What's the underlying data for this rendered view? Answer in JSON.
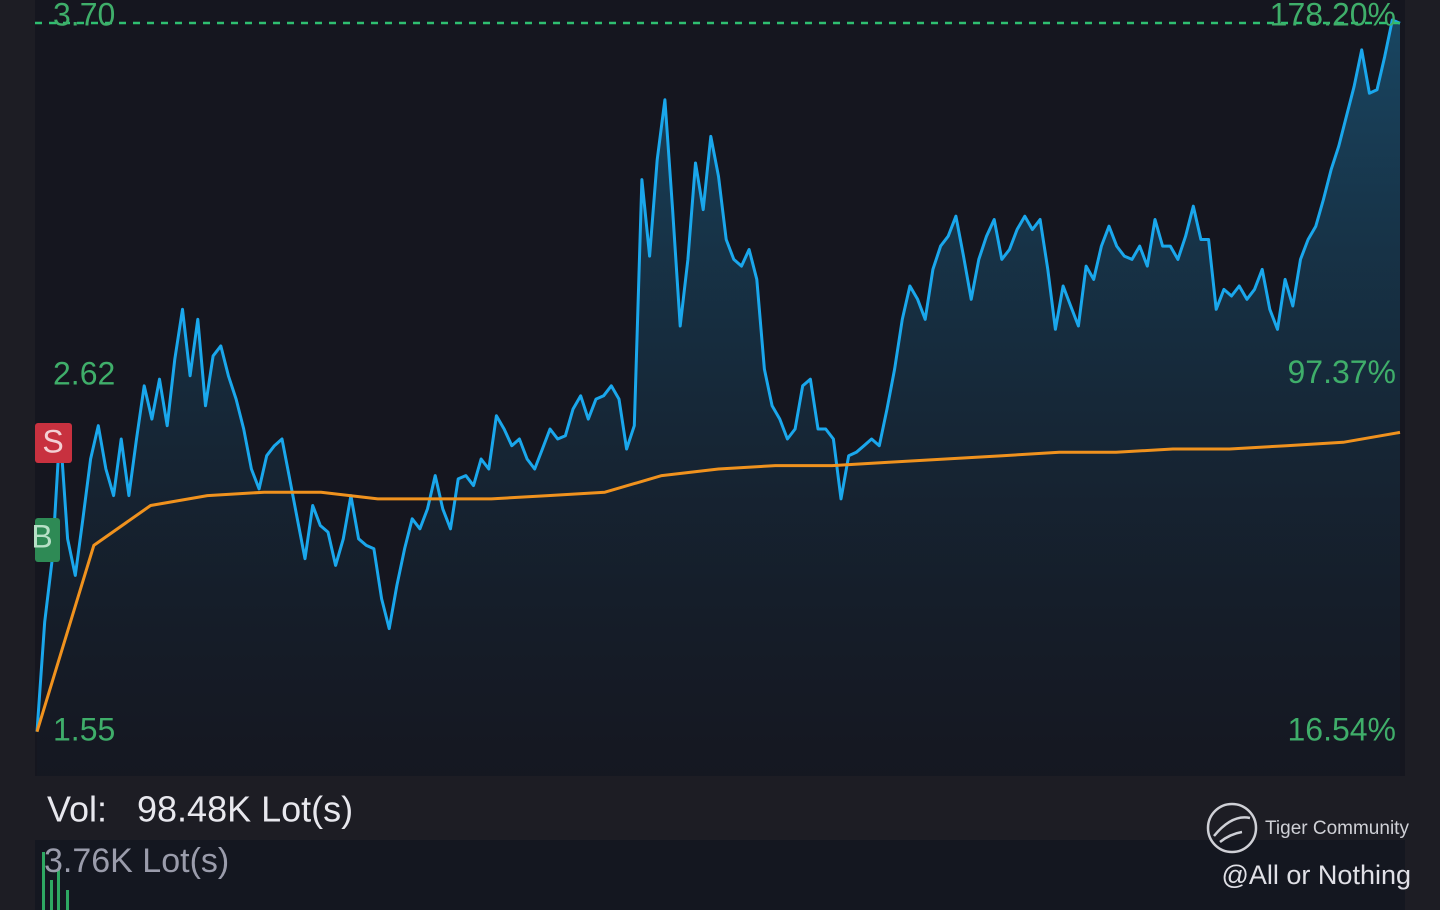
{
  "chart_data": {
    "type": "line",
    "ylim": [
      1.55,
      3.7
    ],
    "yticks": [
      1.55,
      2.62,
      {
        "value": 3.7,
        "label": "3.70"
      }
    ],
    "y2lim": [
      16.54,
      178.2
    ],
    "y2ticks": [
      {
        "value": 16.54,
        "label": "16.54%"
      },
      {
        "value": 97.37,
        "label": "97.37%"
      },
      {
        "value": 178.2,
        "label": "178.20%"
      }
    ],
    "series": [
      {
        "color": "#1aa7ec",
        "values": [
          1.56,
          1.89,
          2.08,
          2.47,
          2.14,
          2.03,
          2.2,
          2.38,
          2.48,
          2.35,
          2.27,
          2.44,
          2.27,
          2.44,
          2.6,
          2.5,
          2.62,
          2.48,
          2.68,
          2.83,
          2.63,
          2.8,
          2.54,
          2.69,
          2.72,
          2.63,
          2.56,
          2.47,
          2.35,
          2.29,
          2.39,
          2.42,
          2.44,
          2.32,
          2.2,
          2.08,
          2.24,
          2.18,
          2.16,
          2.06,
          2.14,
          2.27,
          2.14,
          2.12,
          2.11,
          1.96,
          1.87,
          2.0,
          2.11,
          2.2,
          2.17,
          2.23,
          2.33,
          2.23,
          2.17,
          2.32,
          2.33,
          2.3,
          2.38,
          2.35,
          2.51,
          2.47,
          2.42,
          2.44,
          2.38,
          2.35,
          2.41,
          2.47,
          2.44,
          2.45,
          2.53,
          2.57,
          2.5,
          2.56,
          2.57,
          2.6,
          2.56,
          2.41,
          2.48,
          3.22,
          2.99,
          3.28,
          3.46,
          3.13,
          2.78,
          2.98,
          3.27,
          3.13,
          3.35,
          3.23,
          3.04,
          2.98,
          2.96,
          3.01,
          2.92,
          2.65,
          2.54,
          2.5,
          2.44,
          2.47,
          2.6,
          2.62,
          2.47,
          2.47,
          2.44,
          2.26,
          2.39,
          2.4,
          2.42,
          2.44,
          2.42,
          2.53,
          2.65,
          2.8,
          2.9,
          2.86,
          2.8,
          2.95,
          3.02,
          3.05,
          3.11,
          2.99,
          2.86,
          2.98,
          3.05,
          3.1,
          2.98,
          3.01,
          3.07,
          3.11,
          3.07,
          3.1,
          2.95,
          2.77,
          2.9,
          2.84,
          2.78,
          2.96,
          2.92,
          3.02,
          3.08,
          3.02,
          2.99,
          2.98,
          3.02,
          2.96,
          3.1,
          3.02,
          3.02,
          2.98,
          3.05,
          3.14,
          3.04,
          3.04,
          2.83,
          2.89,
          2.87,
          2.9,
          2.86,
          2.89,
          2.95,
          2.83,
          2.77,
          2.92,
          2.84,
          2.98,
          3.04,
          3.08,
          3.16,
          3.25,
          3.32,
          3.41,
          3.5,
          3.61,
          3.48,
          3.49,
          3.59,
          3.7,
          3.69
        ]
      },
      {
        "color": "#f0921e",
        "values": [
          1.56,
          2.12,
          2.24,
          2.27,
          2.28,
          2.28,
          2.26,
          2.26,
          2.26,
          2.27,
          2.28,
          2.33,
          2.35,
          2.36,
          2.36,
          2.37,
          2.38,
          2.39,
          2.4,
          2.4,
          2.41,
          2.41,
          2.42,
          2.43,
          2.46
        ]
      }
    ]
  },
  "markers": [
    "S",
    "B"
  ],
  "volume": {
    "label": "Vol:",
    "total": "98.48K Lot(s)",
    "scale": "3.76K Lot(s)"
  },
  "watermark": {
    "brand": "Tiger Community",
    "author": "@All or Nothing"
  }
}
